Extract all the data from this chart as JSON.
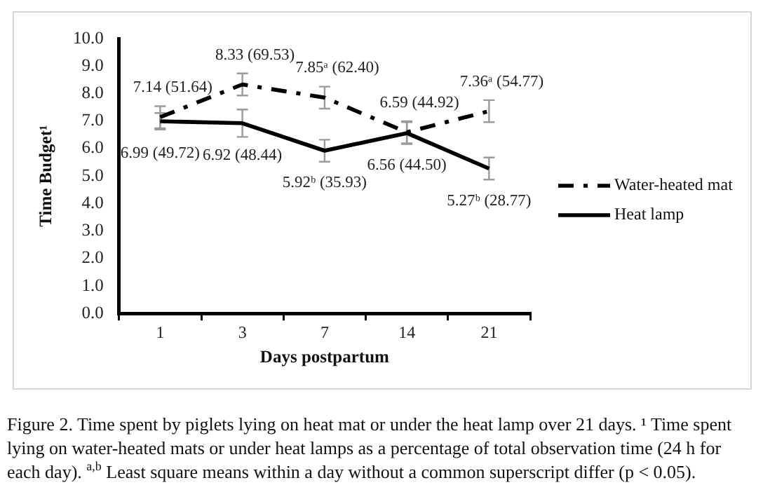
{
  "chart_data": {
    "type": "line",
    "xlabel": "Days postpartum",
    "ylabel": "Time Budget¹",
    "categories": [
      "1",
      "3",
      "7",
      "14",
      "21"
    ],
    "series": [
      {
        "name": "Water-heated mat",
        "color": "#000000",
        "line_style": "dashed",
        "values": [
          7.14,
          8.33,
          7.85,
          6.59,
          7.36
        ],
        "errors": [
          0.4,
          0.4,
          0.4,
          0.4,
          0.4
        ],
        "value_labels": [
          "7.14 (51.64)",
          "8.33 (69.53)",
          "7.85ᵃ (62.40)",
          "6.59 (44.92)",
          "7.36ᵃ (54.77)"
        ]
      },
      {
        "name": "Heat lamp",
        "color": "#000000",
        "line_style": "solid",
        "values": [
          6.99,
          6.92,
          5.92,
          6.56,
          5.27
        ],
        "errors": [
          0.3,
          0.5,
          0.4,
          0.4,
          0.4
        ],
        "value_labels": [
          "6.99 (49.72)",
          "6.92 (48.44)",
          "5.92ᵇ (35.93)",
          "6.56 (44.50)",
          "5.27ᵇ (28.77)"
        ]
      }
    ],
    "ylim": [
      0,
      10
    ],
    "yticks": [
      {
        "value": 0,
        "label": "0.0"
      },
      {
        "value": 1,
        "label": "1.0"
      },
      {
        "value": 2,
        "label": "2.0"
      },
      {
        "value": 3,
        "label": "3.0"
      },
      {
        "value": 4,
        "label": "4.0"
      },
      {
        "value": 5,
        "label": "5.0"
      },
      {
        "value": 6,
        "label": "6.0"
      },
      {
        "value": 7,
        "label": "7.0"
      },
      {
        "value": 8,
        "label": "8.0"
      },
      {
        "value": 9,
        "label": "9.0"
      },
      {
        "value": 10,
        "label": "10.0"
      }
    ],
    "grid": false,
    "legend": "right",
    "marker": "none",
    "annotations": [
      "Figure 2. Time spent by piglets lying on heat mat or under the heat lamp over 21 days. ¹ Time spent lying on water-heated mats or under heat lamps as a percentage of total observation time (24 h for each day). $^{a,b}$ Least square means within a day without a common superscript differ (p < 0.05)."
    ]
  }
}
